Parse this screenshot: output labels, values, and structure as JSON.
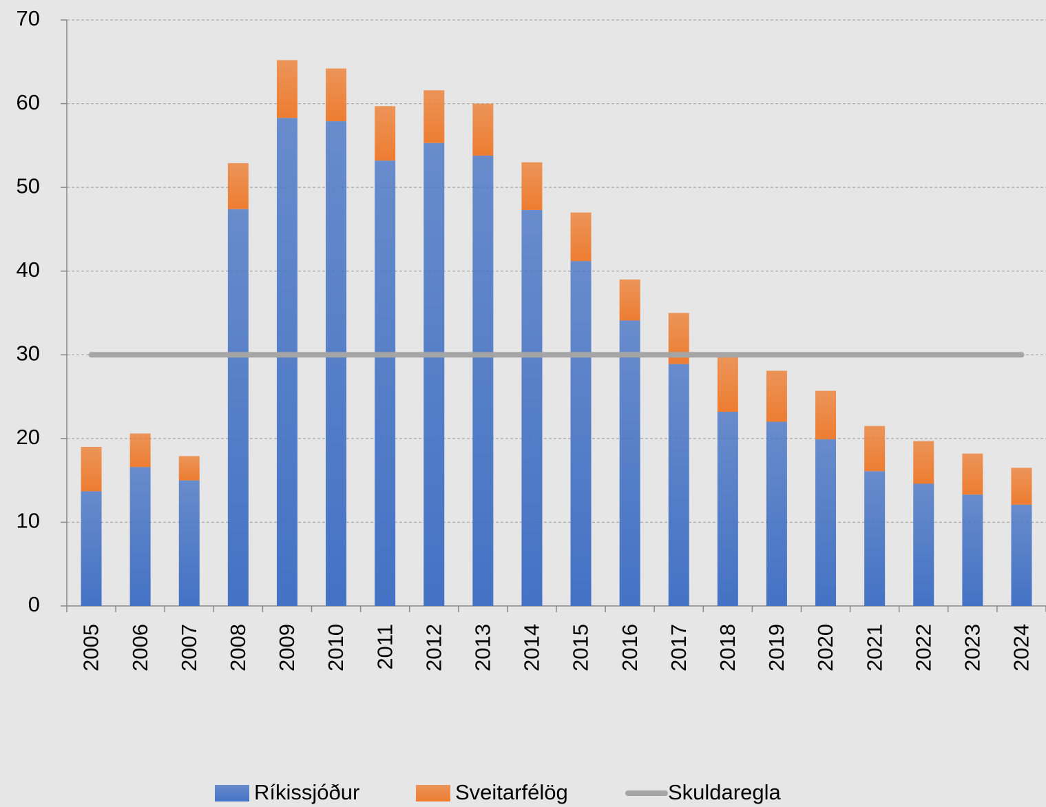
{
  "chart_data": {
    "type": "bar",
    "stacked": true,
    "categories": [
      "2005",
      "2006",
      "2007",
      "2008",
      "2009",
      "2010",
      "2011",
      "2012",
      "2013",
      "2014",
      "2015",
      "2016",
      "2017",
      "2018",
      "2019",
      "2020",
      "2021",
      "2022",
      "2023",
      "2024"
    ],
    "series": [
      {
        "name": "Ríkissjóður",
        "color": "#4472c4",
        "values": [
          13.7,
          16.6,
          15.0,
          47.4,
          58.3,
          57.9,
          53.2,
          55.3,
          53.8,
          47.3,
          41.2,
          34.1,
          28.9,
          23.2,
          22.0,
          19.9,
          16.1,
          14.6,
          13.3,
          12.1
        ]
      },
      {
        "name": "Sveitarfélög",
        "color": "#ed7d31",
        "values": [
          5.3,
          4.0,
          2.9,
          5.5,
          6.9,
          6.3,
          6.5,
          6.3,
          6.2,
          5.7,
          5.8,
          4.9,
          6.1,
          6.5,
          6.1,
          5.8,
          5.4,
          5.1,
          4.9,
          4.4
        ]
      },
      {
        "name": "Skuldaregla",
        "type": "line",
        "color": "#a5a5a5",
        "values": [
          30,
          30,
          30,
          30,
          30,
          30,
          30,
          30,
          30,
          30,
          30,
          30,
          30,
          30,
          30,
          30,
          30,
          30,
          30,
          30
        ]
      }
    ],
    "ylim": [
      0,
      70
    ],
    "yticks": [
      0,
      10,
      20,
      30,
      40,
      50,
      60,
      70
    ],
    "grid": true,
    "legend": "bottom"
  }
}
